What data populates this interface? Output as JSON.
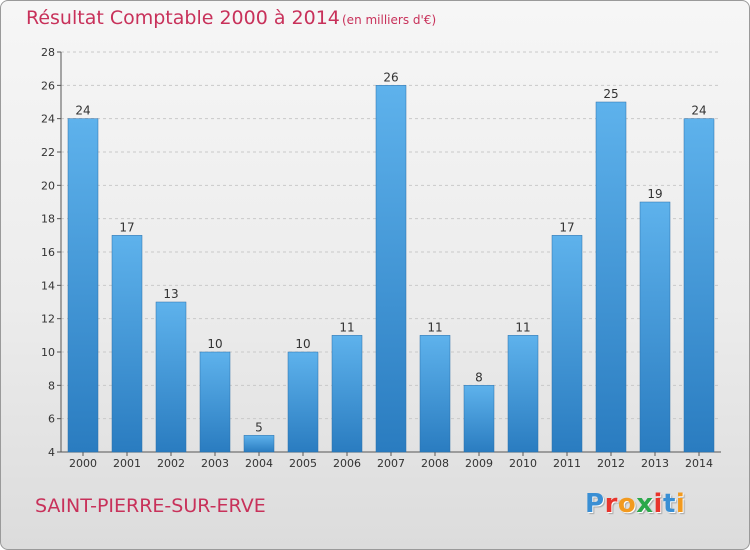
{
  "header": {
    "title": "Résultat Comptable 2000 à 2014",
    "subtitle": "(en milliers d'€)"
  },
  "footer": {
    "town": "SAINT-PIERRE-SUR-ERVE",
    "logo_text": "Proxiti",
    "logo_colors": [
      "#3a8fd4",
      "#e8342c",
      "#f29a1f",
      "#2aa84a",
      "#e8342c",
      "#3a8fd4",
      "#f29a1f"
    ]
  },
  "chart_data": {
    "type": "bar",
    "categories": [
      "2000",
      "2001",
      "2002",
      "2003",
      "2004",
      "2005",
      "2006",
      "2007",
      "2008",
      "2009",
      "2010",
      "2011",
      "2012",
      "2013",
      "2014"
    ],
    "values": [
      24,
      17,
      13,
      10,
      5,
      10,
      11,
      26,
      11,
      8,
      11,
      17,
      25,
      19,
      24
    ],
    "data_labels": [
      "24",
      "17",
      "13",
      "10",
      "5",
      "10",
      "11",
      "26",
      "11",
      "8",
      "11",
      "17",
      "25",
      "19",
      "24"
    ],
    "yticks": [
      "4",
      "6",
      "8",
      "10",
      "12",
      "14",
      "16",
      "18",
      "20",
      "22",
      "24",
      "26",
      "28"
    ],
    "ylim": [
      4,
      28
    ],
    "grid": true,
    "bar_color_light": "#5eb2ec",
    "bar_color_dark": "#2a7cc0",
    "label_color": "#333333"
  }
}
